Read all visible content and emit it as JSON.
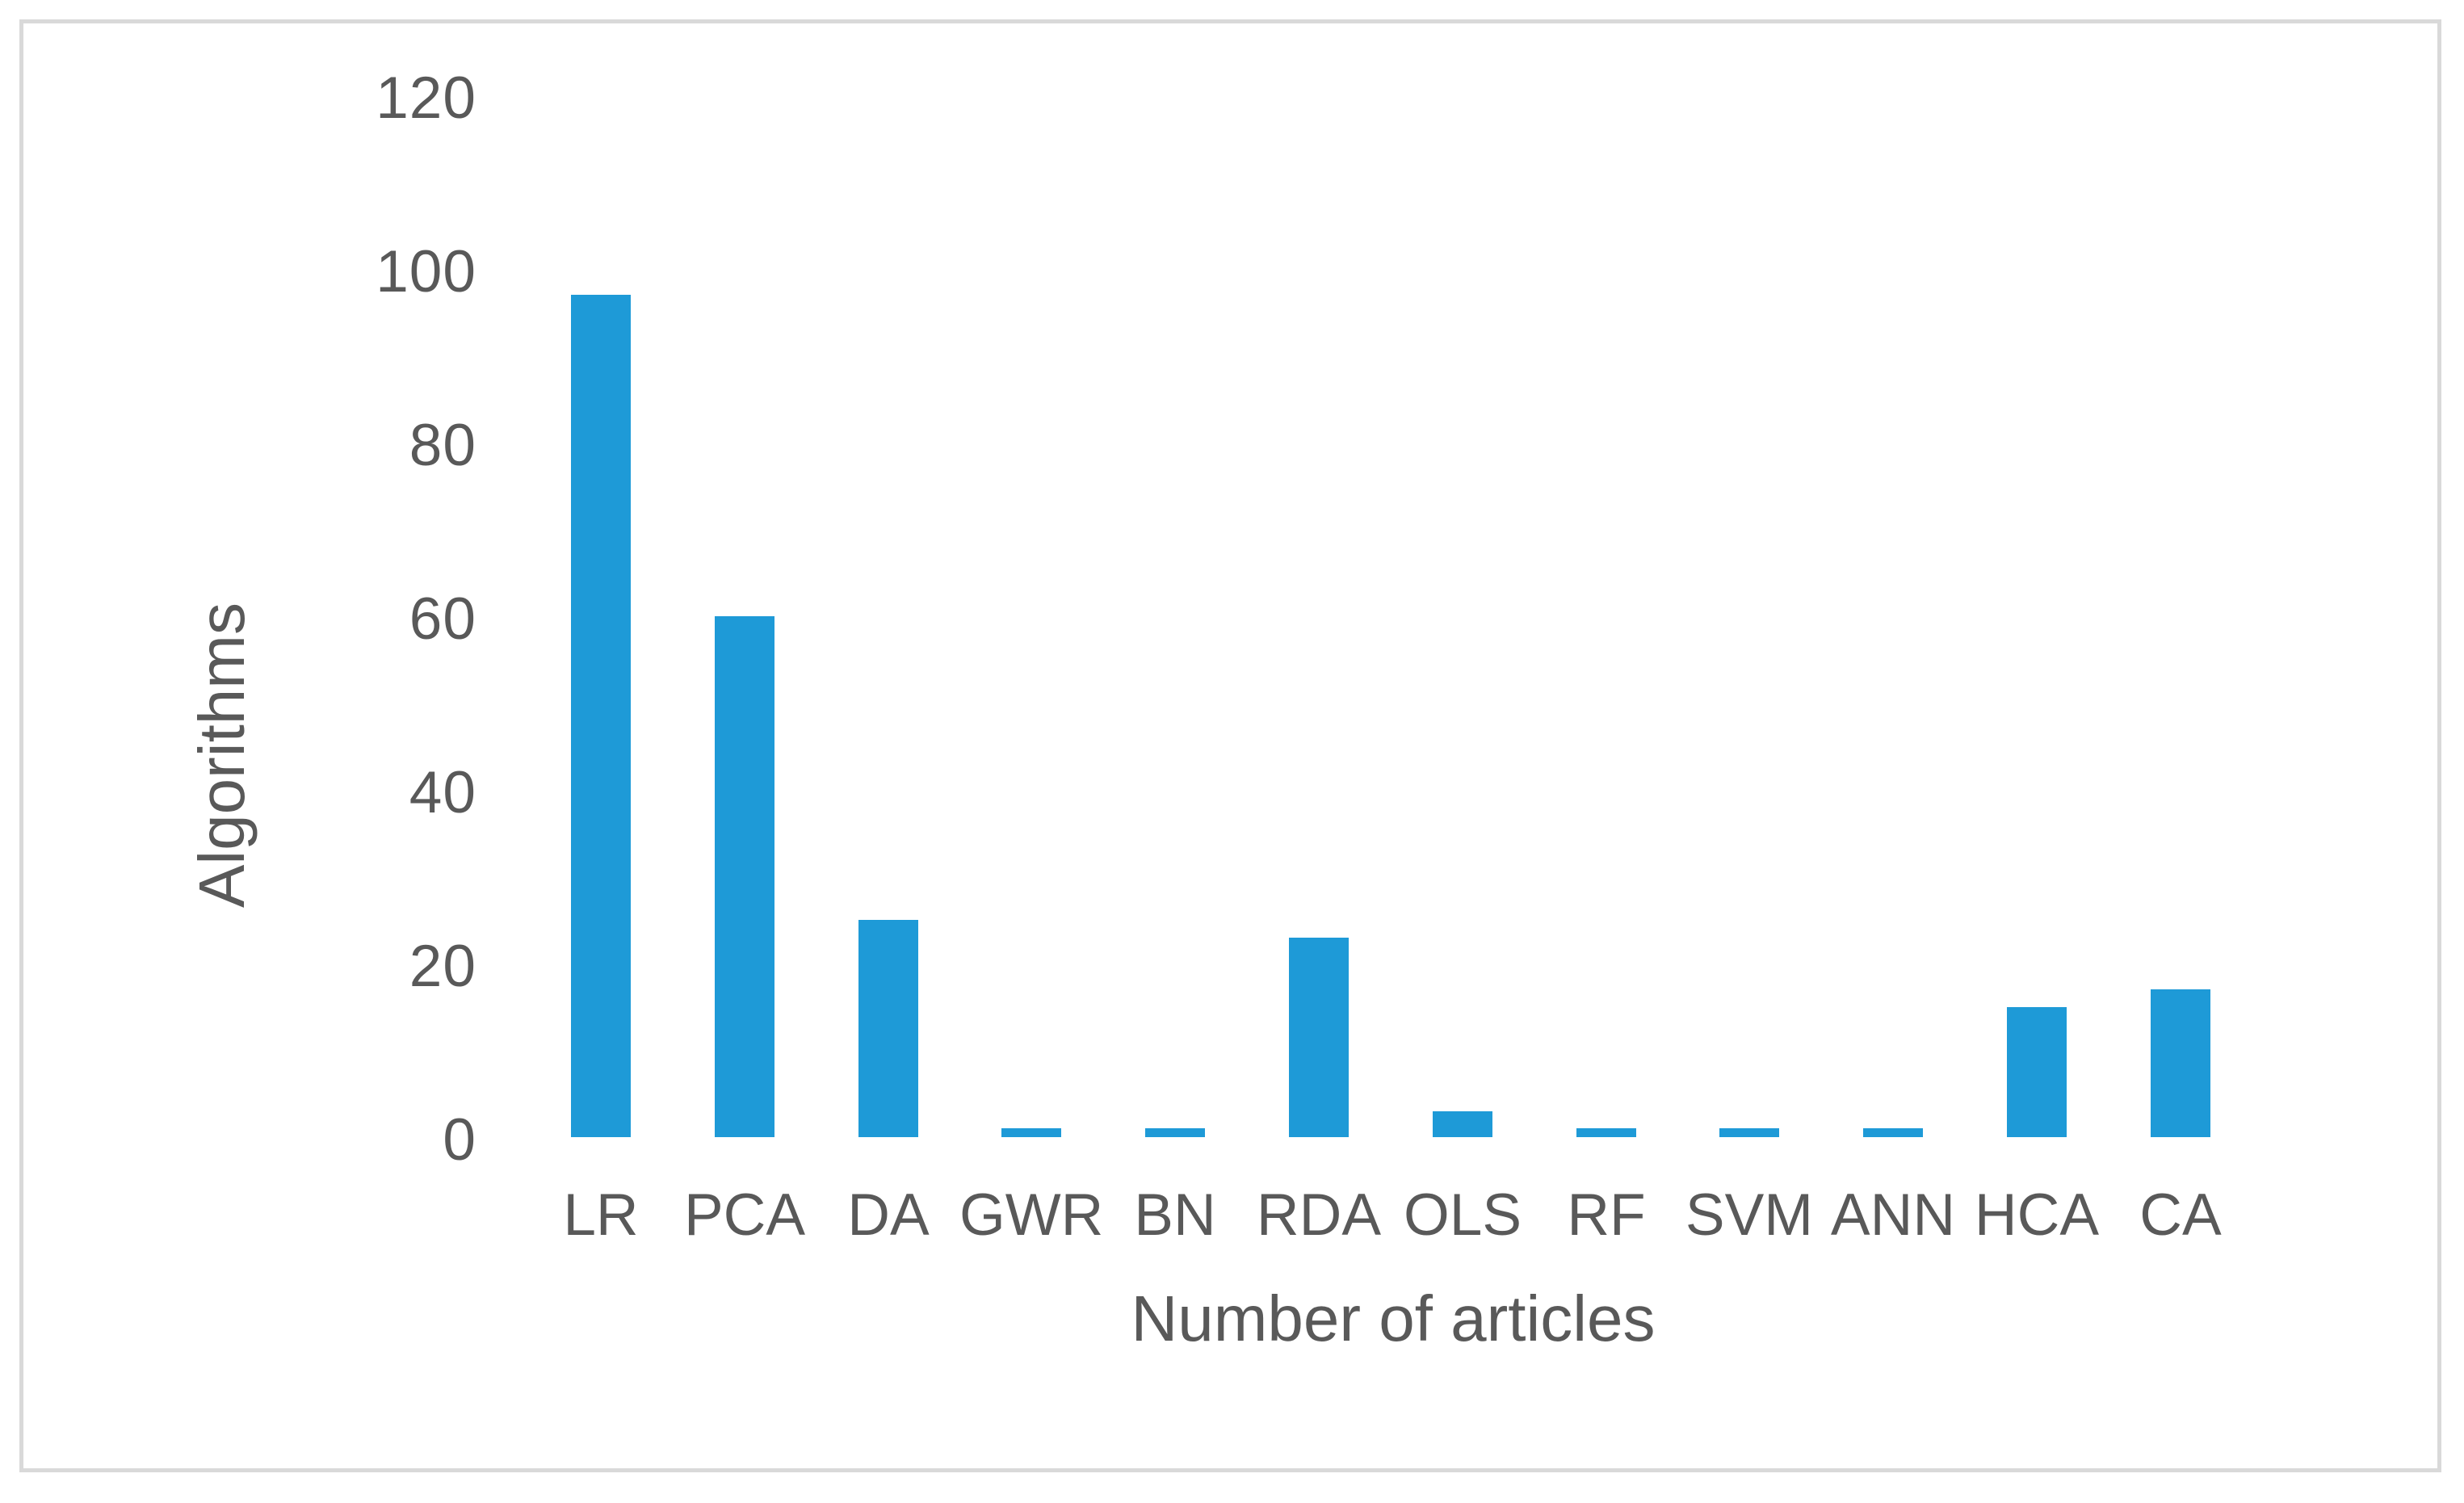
{
  "figure": {
    "background": "#ffffff",
    "frame_border_color": "#d9d9d9",
    "text_color": "#595959"
  },
  "chart_data": {
    "type": "bar",
    "categories": [
      "LR",
      "PCA",
      "DA",
      "GWR",
      "BN",
      "RDA",
      "OLS",
      "RF",
      "SVM",
      "ANN",
      "HCA",
      "CA"
    ],
    "values": [
      97,
      60,
      25,
      1,
      1,
      23,
      3,
      1,
      1,
      1,
      15,
      17
    ],
    "title": "",
    "xlabel": "Number of articles",
    "ylabel": "Algorithms",
    "ylim": [
      0,
      120
    ],
    "yticks": [
      0,
      20,
      40,
      60,
      80,
      100,
      120
    ],
    "bar_color": "#1e9ad7",
    "grid": false,
    "legend": false
  }
}
